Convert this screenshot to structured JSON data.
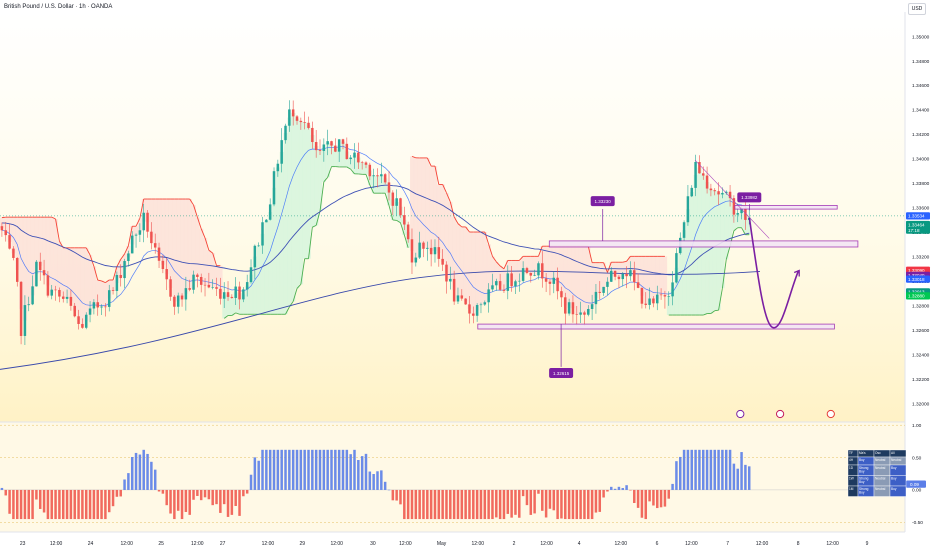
{
  "header": {
    "title": "British Pound / U.S. Dollar · 1h · OANDA",
    "currency_button": "USD"
  },
  "chart_data": {
    "type": "candlestick",
    "instrument": "GBPUSD",
    "price_axis": {
      "range": [
        1.3185,
        1.352
      ],
      "ticks": [
        "1.35000",
        "1.34800",
        "1.34600",
        "1.34400",
        "1.34200",
        "1.34000",
        "1.33800",
        "1.33600",
        "1.33400",
        "1.33200",
        "1.33000",
        "1.32800",
        "1.32600",
        "1.32400",
        "1.32200",
        "1.32000"
      ]
    },
    "price_tags": [
      {
        "value": 1.33534,
        "text": "1.33534",
        "color": "#2962ff"
      },
      {
        "value": 1.33464,
        "text": "1.33464",
        "color": "#089981"
      },
      {
        "value": 1.33418,
        "text": "17:18",
        "color": "#089981"
      },
      {
        "value": 1.3309,
        "text": "1.33090",
        "color": "#f23645"
      },
      {
        "value": 1.33049,
        "text": "1.33049",
        "color": "#7b1fa2"
      },
      {
        "value": 1.33018,
        "text": "1.33018",
        "color": "#2962ff"
      },
      {
        "value": 1.32913,
        "text": "1.32913",
        "color": "#089981"
      },
      {
        "value": 1.3288,
        "text": "1.32880",
        "color": "#00c853"
      }
    ],
    "time_axis": {
      "labels": [
        {
          "t": 0.025,
          "text": "23"
        },
        {
          "t": 0.062,
          "text": "12:00"
        },
        {
          "t": 0.1,
          "text": "24"
        },
        {
          "t": 0.14,
          "text": "12:00"
        },
        {
          "t": 0.178,
          "text": "25"
        },
        {
          "t": 0.218,
          "text": "12:00"
        },
        {
          "t": 0.246,
          "text": "27"
        },
        {
          "t": 0.296,
          "text": "12:00"
        },
        {
          "t": 0.334,
          "text": "29"
        },
        {
          "t": 0.372,
          "text": "12:00"
        },
        {
          "t": 0.412,
          "text": "30"
        },
        {
          "t": 0.448,
          "text": "12:00"
        },
        {
          "t": 0.488,
          "text": "May"
        },
        {
          "t": 0.528,
          "text": "12:00"
        },
        {
          "t": 0.568,
          "text": "2"
        },
        {
          "t": 0.604,
          "text": "12:00"
        },
        {
          "t": 0.64,
          "text": "4"
        },
        {
          "t": 0.686,
          "text": "12:00"
        },
        {
          "t": 0.726,
          "text": "6"
        },
        {
          "t": 0.764,
          "text": "12:00"
        },
        {
          "t": 0.804,
          "text": "7"
        },
        {
          "t": 0.842,
          "text": "12:00"
        },
        {
          "t": 0.882,
          "text": "8"
        },
        {
          "t": 0.92,
          "text": "12:00"
        },
        {
          "t": 0.958,
          "text": "9"
        }
      ]
    },
    "annotations": [
      {
        "text": "1.33230",
        "kind": "callout",
        "t": 0.666,
        "price": 1.33655
      },
      {
        "text": "1.33982",
        "kind": "callout",
        "t": 0.828,
        "price": 1.33685
      },
      {
        "text": "1.32615",
        "kind": "callout",
        "t": 0.62,
        "price": 1.3225
      }
    ],
    "support_resistance_boxes": [
      {
        "t0": 0.812,
        "t1": 0.925,
        "p0": 1.3359,
        "p1": 1.3362
      },
      {
        "t0": 0.607,
        "t1": 0.948,
        "p0": 1.3328,
        "p1": 1.3333
      },
      {
        "t0": 0.528,
        "t1": 0.922,
        "p0": 1.3261,
        "p1": 1.3265
      }
    ],
    "oscillator": {
      "range": [
        -0.65,
        1.05
      ],
      "ticks": [
        "1.00",
        "0.50",
        "0.00",
        "-0.50"
      ],
      "current_value": "0.09"
    },
    "ratings_table": {
      "headers": [
        "TF",
        "Ma's",
        "Osc",
        "All"
      ],
      "rows": [
        [
          "4H",
          "Buy",
          "Neutral",
          "Neutral"
        ],
        [
          "1D",
          "Strong Buy",
          "Neutral",
          "Buy"
        ],
        [
          "1W",
          "Strong Buy",
          "Neutral",
          "Buy"
        ],
        [
          "1M",
          "Strong Buy",
          "Neutral",
          "Buy"
        ]
      ]
    },
    "colors": {
      "up": "#26a69a",
      "down": "#ef5350",
      "ema_fast": "#2962ff",
      "ema_slow": "#3f51b5",
      "projection": "#7b1fa2",
      "supertrend_up": "#4caf50",
      "supertrend_down": "#f44336"
    }
  }
}
